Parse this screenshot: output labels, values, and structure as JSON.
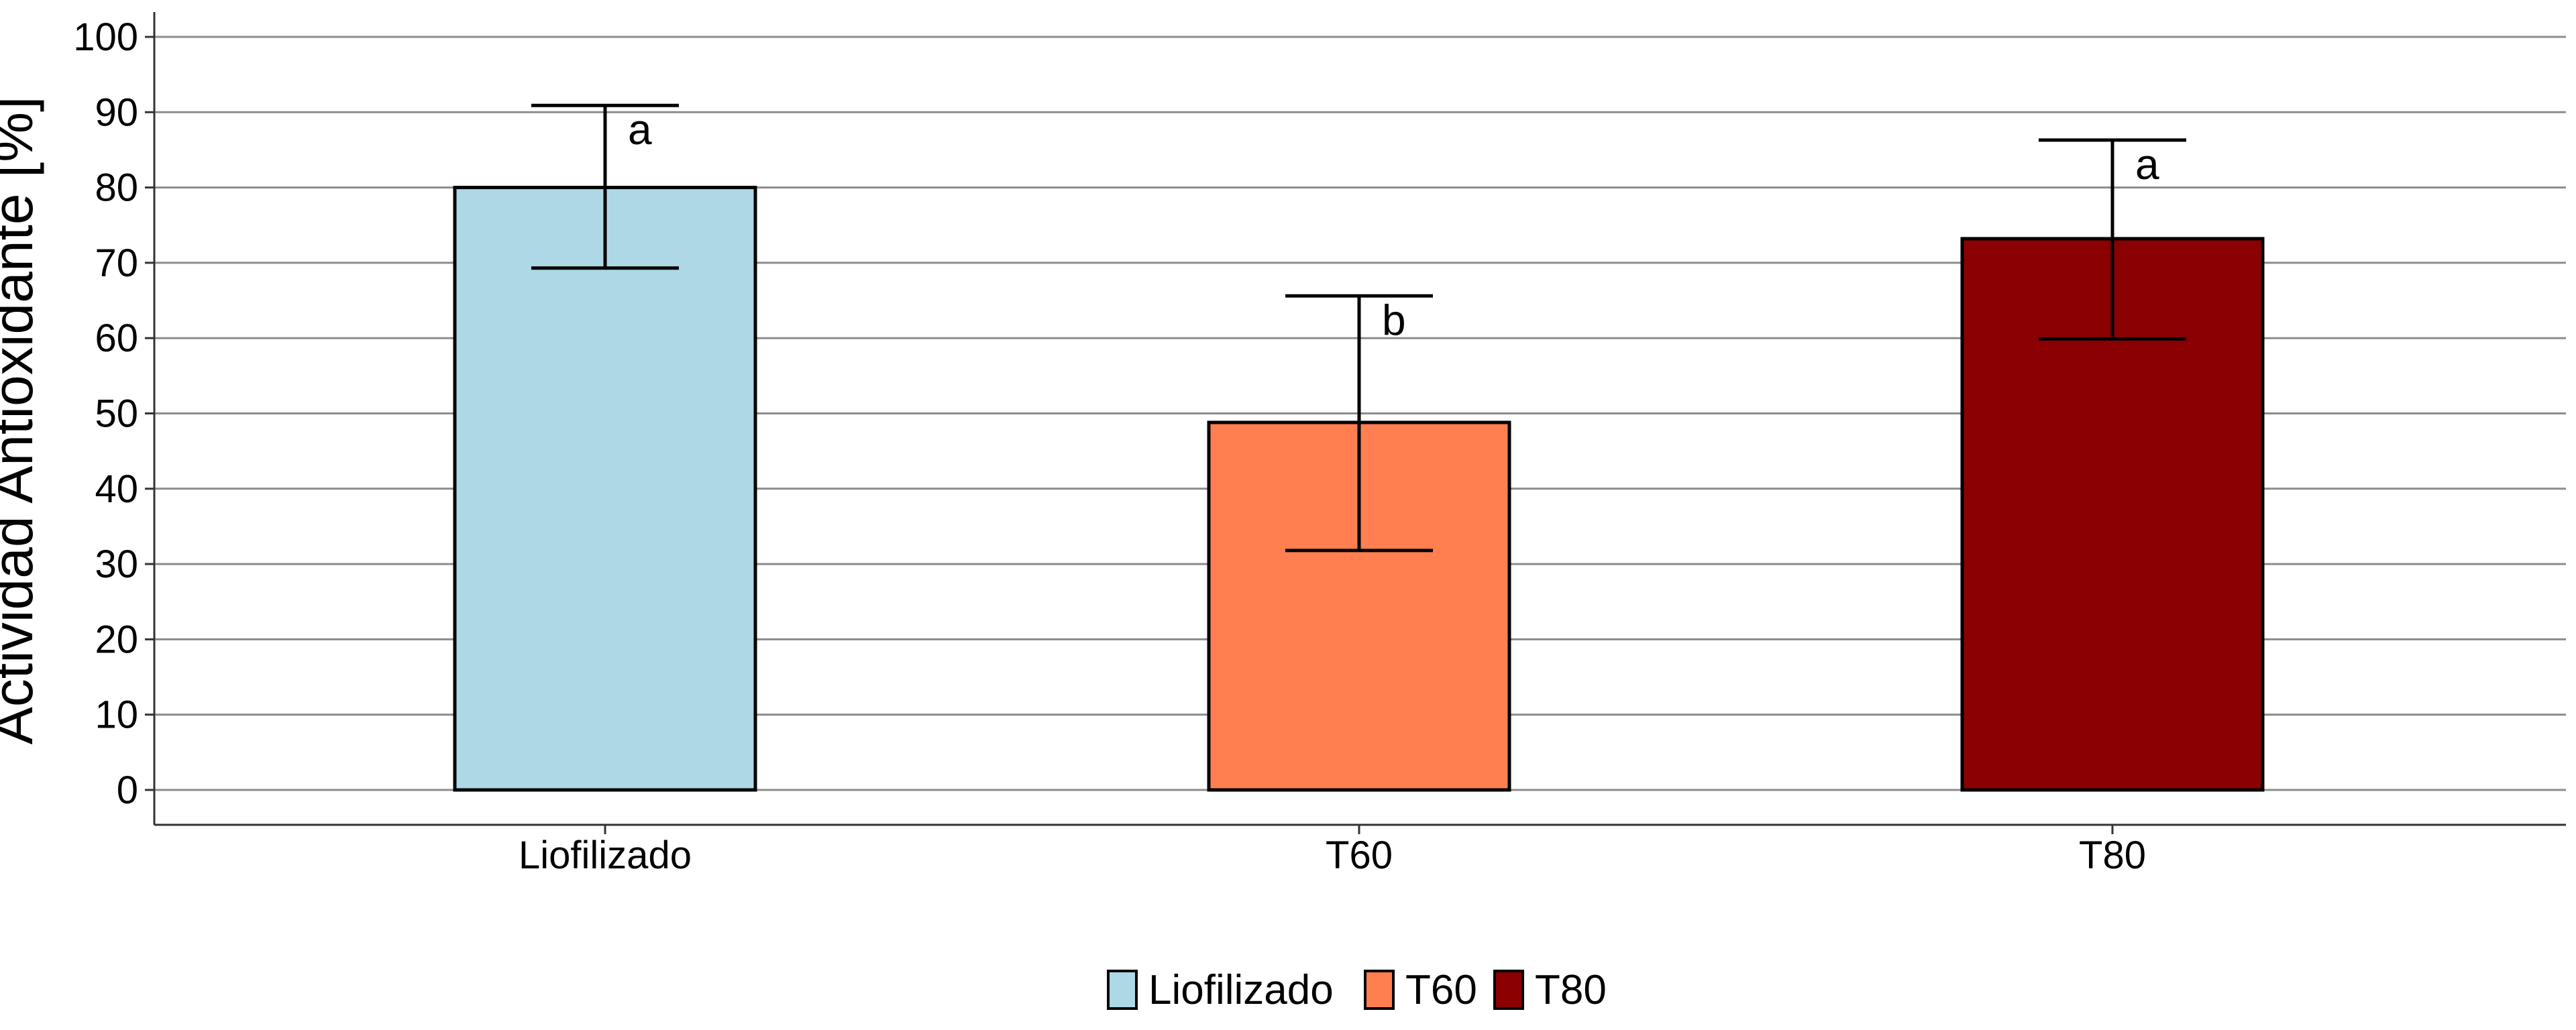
{
  "chart_data": {
    "type": "bar",
    "title": "",
    "xlabel": "",
    "ylabel": "Actividad Antioxidante [%]",
    "ylim": [
      0,
      100
    ],
    "yticks": [
      0,
      10,
      20,
      30,
      40,
      50,
      60,
      70,
      80,
      90,
      100
    ],
    "categories": [
      "Liofilizado",
      "T60",
      "T80"
    ],
    "values": [
      80,
      48.8,
      73.2
    ],
    "error_low": [
      69.3,
      31.8,
      59.9
    ],
    "error_high": [
      90.9,
      65.6,
      86.3
    ],
    "significance": [
      "a",
      "b",
      "a"
    ],
    "colors": [
      "#ADD8E6",
      "#FF7F50",
      "#8B0000"
    ],
    "grid": "horizontal",
    "legend_position": "bottom",
    "legend": [
      "Liofilizado",
      "T60",
      "T80"
    ]
  }
}
